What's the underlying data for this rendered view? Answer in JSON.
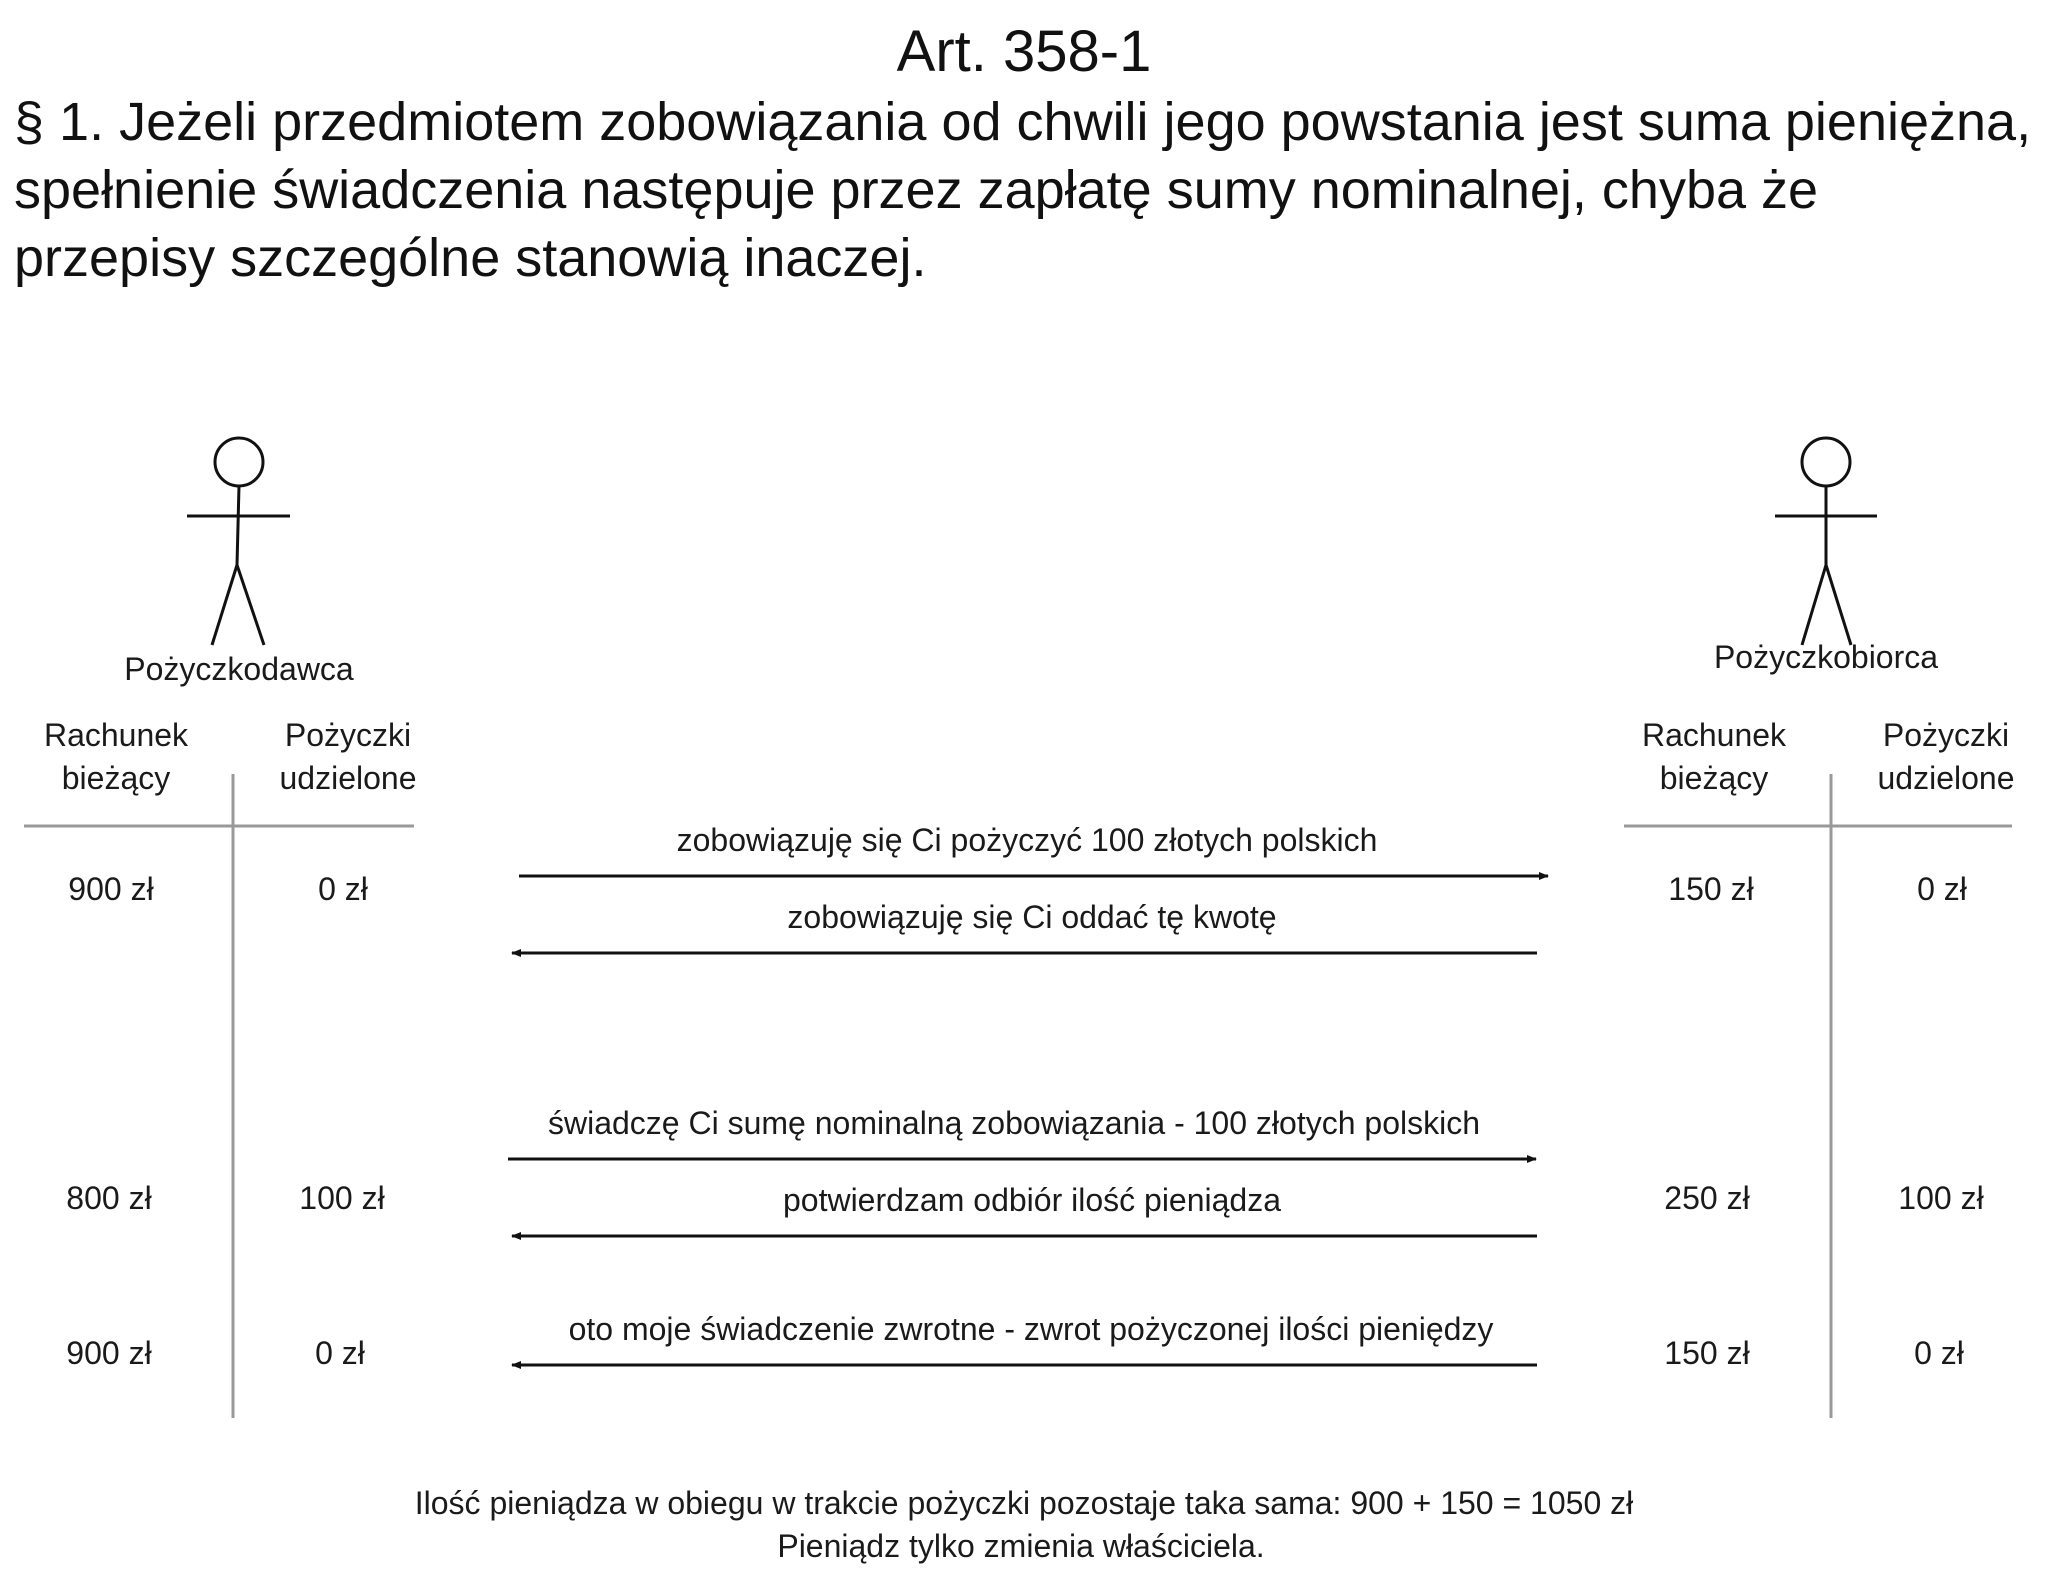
{
  "title": "Art. 358-1",
  "paragraph": "§ 1. Jeżeli przedmiotem zobowiązania od chwili jego powstania jest suma pieniężna, spełnienie świadczenia następuje przez zapłatę sumy nominalnej, chyba że przepisy szczególne stanowią inaczej.",
  "lender": {
    "name": "Pożyczkodawca",
    "col1": [
      "Rachunek",
      "bieżący"
    ],
    "col2": [
      "Pożyczki",
      "udzielone"
    ],
    "rows": [
      {
        "balance": "900 zł",
        "loans": "0 zł"
      },
      {
        "balance": "800 zł",
        "loans": "100 zł"
      },
      {
        "balance": "900 zł",
        "loans": "0 zł"
      }
    ]
  },
  "borrower": {
    "name": "Pożyczkobiorca",
    "col1": [
      "Rachunek",
      "bieżący"
    ],
    "col2": [
      "Pożyczki",
      "udzielone"
    ],
    "rows": [
      {
        "balance": "150 zł",
        "loans": "0 zł"
      },
      {
        "balance": "250 zł",
        "loans": "100 zł"
      },
      {
        "balance": "150 zł",
        "loans": "0 zł"
      }
    ]
  },
  "messages": [
    {
      "text": "zobowiązuję się Ci pożyczyć 100 złotych polskich",
      "direction": "right"
    },
    {
      "text": "zobowiązuję się Ci oddać tę kwotę",
      "direction": "left"
    },
    {
      "text": "świadczę Ci sumę nominalną zobowiązania - 100 złotych polskich",
      "direction": "right"
    },
    {
      "text": "potwierdzam odbiór ilość pieniądza",
      "direction": "left"
    },
    {
      "text": "oto moje świadczenie zwrotne - zwrot pożyczonej ilości pieniędzy",
      "direction": "left"
    }
  ],
  "summary": [
    "Ilość pieniądza w obiegu w trakcie pożyczki pozostaje taka sama: 900 + 150 = 1050 zł",
    "Pieniądz tylko zmienia właściciela."
  ]
}
